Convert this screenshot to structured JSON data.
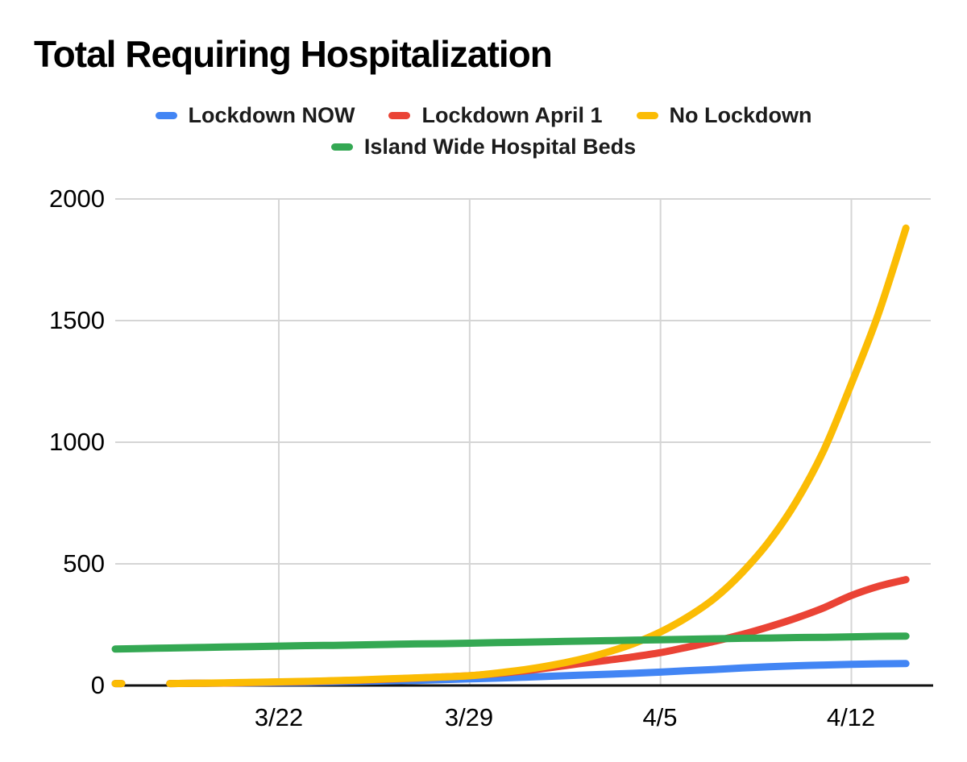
{
  "title": "Total Requiring Hospitalization",
  "axes": {
    "ytick_labels_top_to_bottom": [
      "2000",
      "1500",
      "1000",
      "500",
      "0"
    ],
    "xtick_labels": [
      "3/22",
      "3/29",
      "4/5",
      "4/12"
    ]
  },
  "chart_data": {
    "type": "line",
    "title": "Total Requiring Hospitalization",
    "xlabel": "",
    "ylabel": "",
    "grid": true,
    "legend_position": "top",
    "smooth": true,
    "ylim": [
      0,
      2000
    ],
    "ytick_values": [
      0,
      500,
      1000,
      1500,
      2000
    ],
    "x": [
      "3/16",
      "3/17",
      "3/18",
      "3/19",
      "3/20",
      "3/21",
      "3/22",
      "3/23",
      "3/24",
      "3/25",
      "3/26",
      "3/27",
      "3/28",
      "3/29",
      "3/30",
      "3/31",
      "4/1",
      "4/2",
      "4/3",
      "4/4",
      "4/5",
      "4/6",
      "4/7",
      "4/8",
      "4/9",
      "4/10",
      "4/11",
      "4/12",
      "4/13",
      "4/14"
    ],
    "xtick_days": [
      6,
      13,
      20,
      27
    ],
    "x_domain_days": [
      0,
      30
    ],
    "note": "value null on 3/17 creates the visible gap after the first data point for the three scenario lines",
    "series": [
      {
        "name": "Lockdown NOW",
        "color": "#4285F4",
        "values": [
          8,
          null,
          8,
          9,
          10,
          11,
          12,
          13,
          15,
          17,
          19,
          21,
          24,
          27,
          30,
          34,
          38,
          42,
          46,
          50,
          55,
          61,
          66,
          72,
          77,
          81,
          84,
          87,
          89,
          90
        ]
      },
      {
        "name": "Lockdown April 1",
        "color": "#EA4335",
        "values": [
          8,
          null,
          8,
          9,
          10,
          12,
          14,
          16,
          19,
          22,
          26,
          30,
          35,
          40,
          49,
          60,
          74,
          89,
          103,
          118,
          135,
          158,
          182,
          210,
          242,
          278,
          320,
          370,
          408,
          435
        ]
      },
      {
        "name": "No Lockdown",
        "color": "#FBBC04",
        "values": [
          8,
          null,
          8,
          9,
          11,
          13,
          15,
          17,
          20,
          23,
          27,
          31,
          35,
          40,
          51,
          65,
          83,
          106,
          135,
          172,
          220,
          282,
          360,
          465,
          595,
          760,
          970,
          1240,
          1530,
          1880
        ]
      },
      {
        "name": "Island Wide Hospital Beds",
        "color": "#34A853",
        "values": [
          150,
          152,
          154,
          156,
          158,
          160,
          162,
          164,
          165,
          167,
          169,
          171,
          172,
          174,
          176,
          178,
          180,
          182,
          184,
          186,
          188,
          190,
          192,
          194,
          195,
          197,
          198,
          200,
          202,
          203
        ]
      }
    ],
    "colors": {
      "gridline": "#d5d5d5",
      "axis_line": "#111111",
      "title_text": "#000000",
      "legend_text": "#1c1c1c",
      "tick_text": "#000000"
    }
  }
}
